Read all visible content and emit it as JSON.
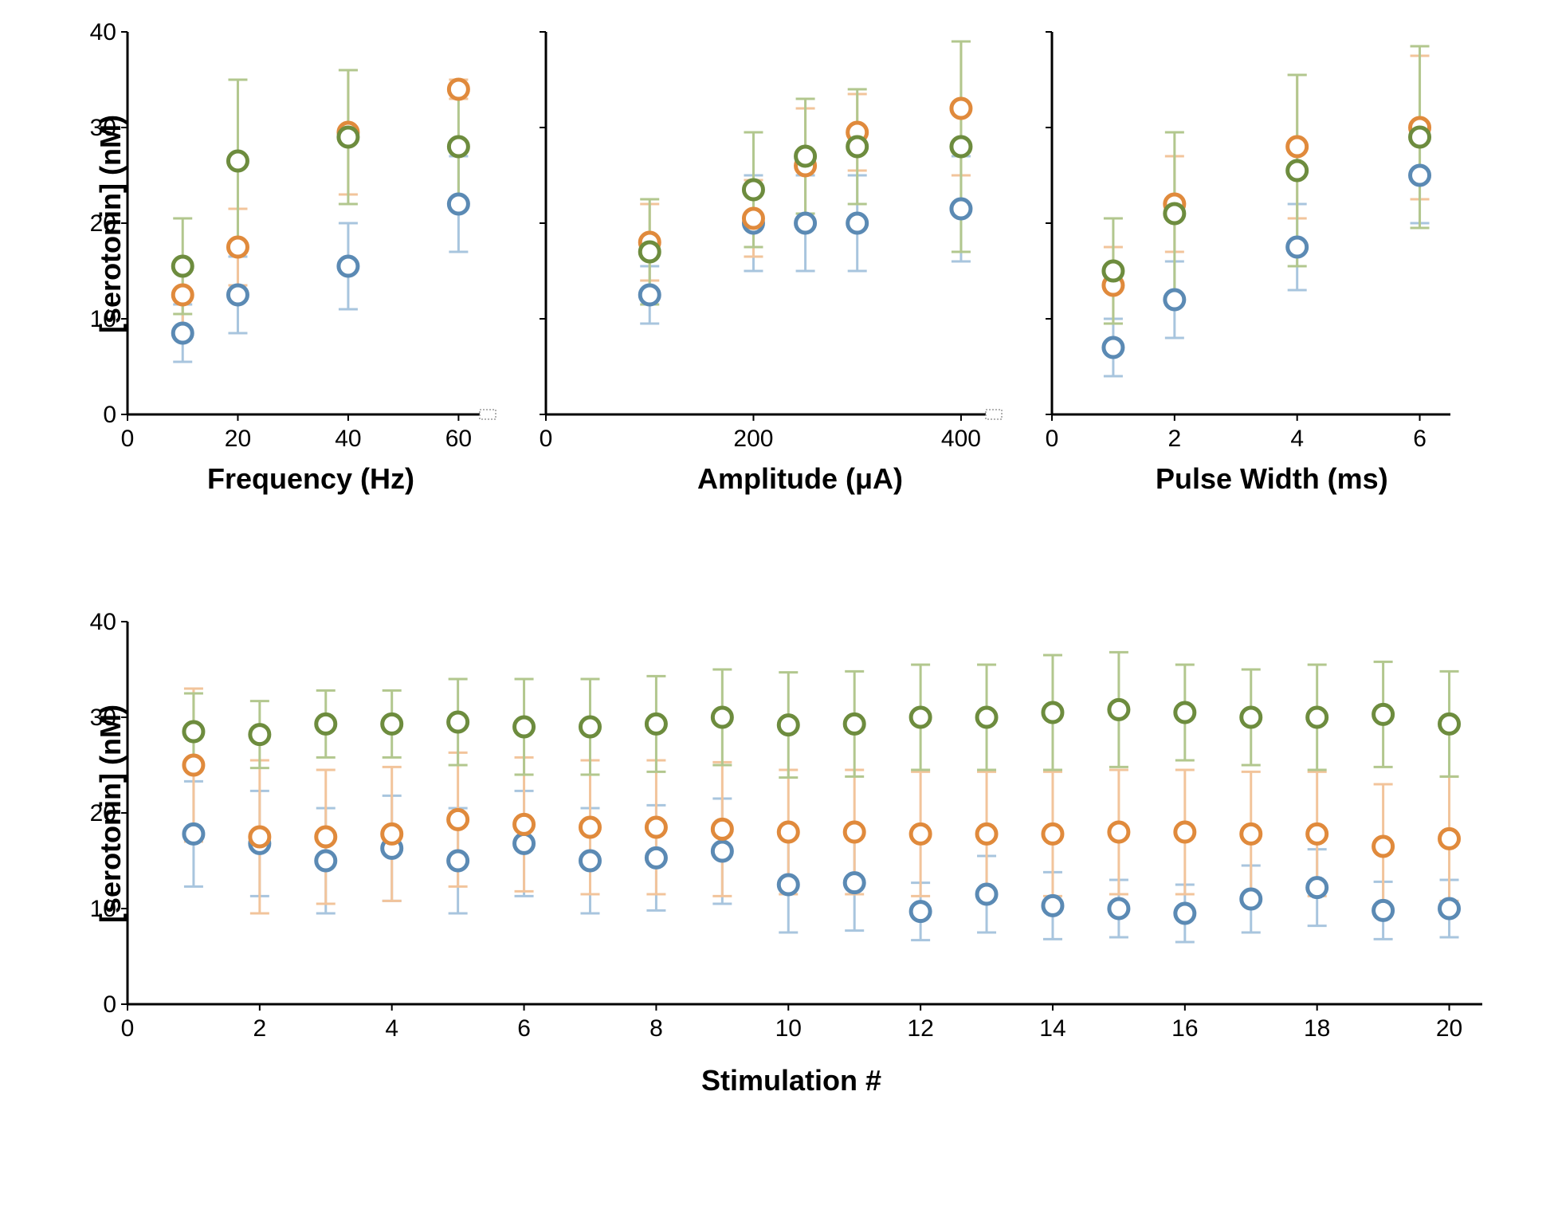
{
  "ylabel": "[serotonin] (nM)",
  "ylabel_fontsize": 36,
  "xlabel_fontsize": 36,
  "tick_fontsize": 30,
  "colors": {
    "series1": "#5b8ab4",
    "series2": "#e08a3c",
    "series3": "#6d8c3e",
    "series1_light": "#a8c5de",
    "series2_light": "#f2c49b",
    "series3_light": "#b2c78e",
    "marker_fill": "#ffffff",
    "axis": "#000000"
  },
  "marker_radius": 12,
  "marker_stroke": 5,
  "error_bar_width": 12,
  "error_bar_stroke": 3,
  "top_panels": {
    "ylim": [
      0,
      40
    ],
    "yticks": [
      0,
      10,
      20,
      30,
      40
    ],
    "freq": {
      "xlabel": "Frequency (Hz)",
      "xlim": [
        0,
        65
      ],
      "xticks": [
        0,
        20,
        40,
        60
      ],
      "series": [
        {
          "x": [
            10,
            20,
            40,
            60
          ],
          "y": [
            8.5,
            12.5,
            15.5,
            22
          ],
          "err": [
            3,
            4,
            4.5,
            5
          ],
          "color": "series1"
        },
        {
          "x": [
            10,
            20,
            40,
            60
          ],
          "y": [
            12.5,
            17.5,
            29.5,
            34
          ],
          "err": [
            3.5,
            4,
            6.5,
            1
          ],
          "color": "series2"
        },
        {
          "x": [
            10,
            20,
            40,
            60
          ],
          "y": [
            15.5,
            26.5,
            29,
            28
          ],
          "err": [
            5,
            8.5,
            7,
            6
          ],
          "color": "series3"
        }
      ]
    },
    "amp": {
      "xlabel": "Amplitude (μA)",
      "xlim": [
        0,
        430
      ],
      "xticks": [
        0,
        200,
        400
      ],
      "series": [
        {
          "x": [
            100,
            200,
            250,
            300,
            400
          ],
          "y": [
            12.5,
            20,
            20,
            20,
            21.5
          ],
          "err": [
            3,
            5,
            5,
            5,
            5.5
          ],
          "color": "series1"
        },
        {
          "x": [
            100,
            200,
            250,
            300,
            400
          ],
          "y": [
            18,
            20.5,
            26,
            29.5,
            32
          ],
          "err": [
            4,
            4,
            6,
            4,
            7
          ],
          "color": "series2"
        },
        {
          "x": [
            100,
            200,
            250,
            300,
            400
          ],
          "y": [
            17,
            23.5,
            27,
            28,
            28
          ],
          "err": [
            5.5,
            6,
            6,
            6,
            11
          ],
          "color": "series3"
        }
      ]
    },
    "pw": {
      "xlabel": "Pulse Width (ms)",
      "xlim": [
        0,
        6.5
      ],
      "xticks": [
        0,
        2,
        4,
        6
      ],
      "series": [
        {
          "x": [
            1,
            2,
            4,
            6
          ],
          "y": [
            7,
            12,
            17.5,
            25
          ],
          "err": [
            3,
            4,
            4.5,
            5
          ],
          "color": "series1"
        },
        {
          "x": [
            1,
            2,
            4,
            6
          ],
          "y": [
            13.5,
            22,
            28,
            30
          ],
          "err": [
            4,
            5,
            7.5,
            7.5
          ],
          "color": "series2"
        },
        {
          "x": [
            1,
            2,
            4,
            6
          ],
          "y": [
            15,
            21,
            25.5,
            29
          ],
          "err": [
            5.5,
            8.5,
            10,
            9.5
          ],
          "color": "series3"
        }
      ]
    }
  },
  "bottom_panel": {
    "xlabel": "Stimulation #",
    "ylim": [
      0,
      40
    ],
    "yticks": [
      0,
      10,
      20,
      30,
      40
    ],
    "xlim": [
      0,
      20.5
    ],
    "xticks": [
      0,
      2,
      4,
      6,
      8,
      10,
      12,
      14,
      16,
      18,
      20
    ],
    "series": [
      {
        "x": [
          1,
          2,
          3,
          4,
          5,
          6,
          7,
          8,
          9,
          10,
          11,
          12,
          13,
          14,
          15,
          16,
          17,
          18,
          19,
          20
        ],
        "y": [
          17.8,
          16.8,
          15,
          16.3,
          15,
          16.8,
          15,
          15.3,
          16,
          12.5,
          12.7,
          9.7,
          11.5,
          10.3,
          10,
          9.5,
          11,
          12.2,
          9.8,
          10
        ],
        "err": [
          5.5,
          5.5,
          5.5,
          5.5,
          5.5,
          5.5,
          5.5,
          5.5,
          5.5,
          5,
          5,
          3,
          4,
          3.5,
          3,
          3,
          3.5,
          4,
          3,
          3
        ],
        "color": "series1"
      },
      {
        "x": [
          1,
          2,
          3,
          4,
          5,
          6,
          7,
          8,
          9,
          10,
          11,
          12,
          13,
          14,
          15,
          16,
          17,
          18,
          19,
          20
        ],
        "y": [
          25,
          17.5,
          17.5,
          17.8,
          19.3,
          18.8,
          18.5,
          18.5,
          18.3,
          18,
          18,
          17.8,
          17.8,
          17.8,
          18,
          18,
          17.8,
          17.8,
          16.5,
          17.3
        ],
        "err": [
          8,
          8,
          7,
          7,
          7,
          7,
          7,
          7,
          7,
          6.5,
          6.5,
          6.5,
          6.5,
          6.5,
          6.5,
          6.5,
          6.5,
          6.5,
          6.5,
          6.5
        ],
        "color": "series2"
      },
      {
        "x": [
          1,
          2,
          3,
          4,
          5,
          6,
          7,
          8,
          9,
          10,
          11,
          12,
          13,
          14,
          15,
          16,
          17,
          18,
          19,
          20
        ],
        "y": [
          28.5,
          28.2,
          29.3,
          29.3,
          29.5,
          29,
          29,
          29.3,
          30,
          29.2,
          29.3,
          30,
          30,
          30.5,
          30.8,
          30.5,
          30,
          30,
          30.3,
          29.3
        ],
        "err": [
          4,
          3.5,
          3.5,
          3.5,
          4.5,
          5,
          5,
          5,
          5,
          5.5,
          5.5,
          5.5,
          5.5,
          6,
          6,
          5,
          5,
          5.5,
          5.5,
          5.5
        ],
        "color": "series3"
      }
    ]
  }
}
